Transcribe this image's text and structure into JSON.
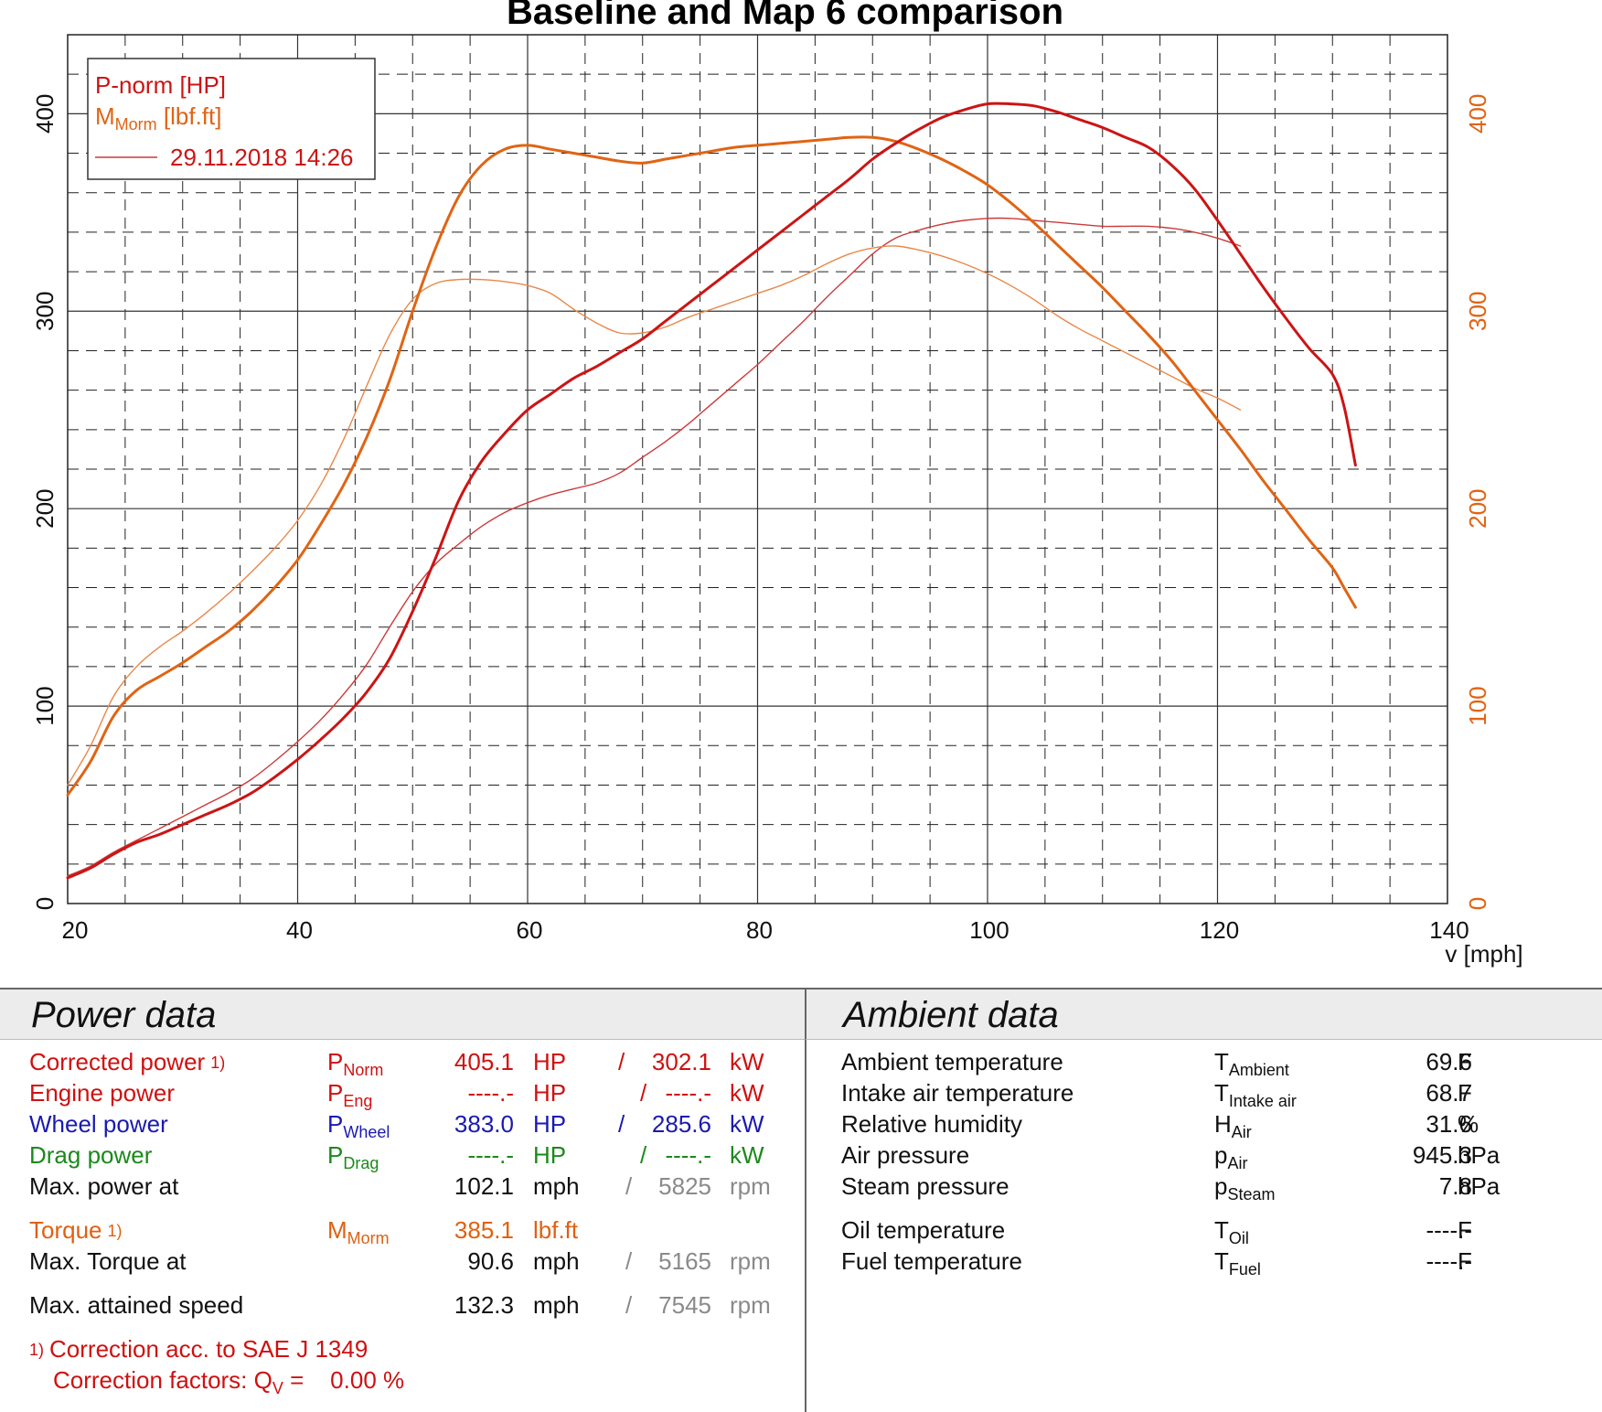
{
  "chart_data": {
    "type": "line",
    "title": "Baseline and Map 6 comparison",
    "xlabel": "v [mph]",
    "xlim": [
      20,
      140
    ],
    "ylim_left": [
      0,
      440
    ],
    "ylim_right": [
      0,
      440
    ],
    "x_ticks": [
      "20",
      "40",
      "60",
      "80",
      "100",
      "120",
      "140"
    ],
    "y_ticks_left": [
      "0",
      "100",
      "200",
      "300",
      "400"
    ],
    "y_ticks_right": [
      "0",
      "100",
      "200",
      "300",
      "400"
    ],
    "grid": true,
    "legend_position": "top-left",
    "legend": {
      "power_label": "P-norm [HP]",
      "torque_label_main": "M",
      "torque_label_sub": "Morm",
      "torque_label_unit": " [lbf.ft]",
      "baseline_label": "29.11.2018 14:26"
    },
    "colors": {
      "power": "#cc1414",
      "torque": "#e06414",
      "baseline_power": "#cc3a3a",
      "baseline_torque": "#e8884a"
    },
    "series": [
      {
        "key": "power_map6",
        "axis": "left",
        "points": [
          [
            20,
            13
          ],
          [
            22,
            18
          ],
          [
            24,
            25
          ],
          [
            26,
            31
          ],
          [
            28,
            35
          ],
          [
            30,
            40
          ],
          [
            32,
            45
          ],
          [
            34,
            50
          ],
          [
            36,
            56
          ],
          [
            38,
            64
          ],
          [
            40,
            73
          ],
          [
            42,
            83
          ],
          [
            44,
            94
          ],
          [
            46,
            107
          ],
          [
            48,
            124
          ],
          [
            50,
            148
          ],
          [
            52,
            175
          ],
          [
            54,
            204
          ],
          [
            56,
            224
          ],
          [
            58,
            238
          ],
          [
            60,
            250
          ],
          [
            62,
            258
          ],
          [
            64,
            266
          ],
          [
            66,
            272
          ],
          [
            68,
            279
          ],
          [
            70,
            286
          ],
          [
            72,
            295
          ],
          [
            74,
            304
          ],
          [
            76,
            313
          ],
          [
            78,
            322
          ],
          [
            80,
            331
          ],
          [
            82,
            340
          ],
          [
            84,
            349
          ],
          [
            86,
            358
          ],
          [
            88,
            367
          ],
          [
            90,
            377
          ],
          [
            92,
            385
          ],
          [
            94,
            392
          ],
          [
            96,
            398
          ],
          [
            98,
            402
          ],
          [
            100,
            405
          ],
          [
            102,
            405
          ],
          [
            104,
            404
          ],
          [
            106,
            401
          ],
          [
            108,
            397
          ],
          [
            110,
            393
          ],
          [
            112,
            388
          ],
          [
            114,
            383
          ],
          [
            116,
            374
          ],
          [
            118,
            362
          ],
          [
            120,
            346
          ],
          [
            122,
            329
          ],
          [
            124,
            312
          ],
          [
            126,
            296
          ],
          [
            128,
            281
          ],
          [
            130,
            268
          ],
          [
            131,
            252
          ],
          [
            132,
            222
          ]
        ]
      },
      {
        "key": "torque_map6",
        "axis": "right",
        "points": [
          [
            20,
            55
          ],
          [
            22,
            72
          ],
          [
            24,
            95
          ],
          [
            26,
            108
          ],
          [
            28,
            115
          ],
          [
            30,
            122
          ],
          [
            32,
            130
          ],
          [
            34,
            138
          ],
          [
            36,
            148
          ],
          [
            38,
            160
          ],
          [
            40,
            174
          ],
          [
            42,
            192
          ],
          [
            44,
            212
          ],
          [
            46,
            236
          ],
          [
            48,
            265
          ],
          [
            50,
            300
          ],
          [
            52,
            332
          ],
          [
            54,
            358
          ],
          [
            56,
            374
          ],
          [
            58,
            382
          ],
          [
            60,
            384
          ],
          [
            62,
            382
          ],
          [
            64,
            380
          ],
          [
            66,
            378
          ],
          [
            68,
            376
          ],
          [
            70,
            375
          ],
          [
            72,
            377
          ],
          [
            74,
            379
          ],
          [
            76,
            381
          ],
          [
            78,
            383
          ],
          [
            80,
            384
          ],
          [
            82,
            385
          ],
          [
            84,
            386
          ],
          [
            86,
            387
          ],
          [
            88,
            388
          ],
          [
            90,
            388
          ],
          [
            92,
            386
          ],
          [
            94,
            382
          ],
          [
            96,
            377
          ],
          [
            98,
            371
          ],
          [
            100,
            364
          ],
          [
            102,
            355
          ],
          [
            104,
            345
          ],
          [
            106,
            334
          ],
          [
            108,
            323
          ],
          [
            110,
            312
          ],
          [
            112,
            300
          ],
          [
            114,
            288
          ],
          [
            116,
            275
          ],
          [
            118,
            260
          ],
          [
            120,
            245
          ],
          [
            122,
            230
          ],
          [
            124,
            214
          ],
          [
            126,
            199
          ],
          [
            128,
            184
          ],
          [
            130,
            170
          ],
          [
            131,
            160
          ],
          [
            132,
            150
          ]
        ]
      },
      {
        "key": "power_baseline",
        "axis": "left",
        "points": [
          [
            20,
            14
          ],
          [
            22,
            19
          ],
          [
            24,
            26
          ],
          [
            26,
            32
          ],
          [
            28,
            38
          ],
          [
            30,
            44
          ],
          [
            32,
            50
          ],
          [
            34,
            56
          ],
          [
            36,
            63
          ],
          [
            38,
            72
          ],
          [
            40,
            82
          ],
          [
            42,
            93
          ],
          [
            44,
            106
          ],
          [
            46,
            121
          ],
          [
            48,
            140
          ],
          [
            50,
            158
          ],
          [
            52,
            172
          ],
          [
            54,
            182
          ],
          [
            56,
            191
          ],
          [
            58,
            198
          ],
          [
            60,
            203
          ],
          [
            62,
            207
          ],
          [
            64,
            210
          ],
          [
            66,
            213
          ],
          [
            68,
            218
          ],
          [
            70,
            226
          ],
          [
            72,
            234
          ],
          [
            74,
            243
          ],
          [
            76,
            253
          ],
          [
            78,
            263
          ],
          [
            80,
            273
          ],
          [
            82,
            284
          ],
          [
            84,
            295
          ],
          [
            86,
            307
          ],
          [
            88,
            318
          ],
          [
            90,
            329
          ],
          [
            92,
            337
          ],
          [
            94,
            341
          ],
          [
            96,
            344
          ],
          [
            98,
            346
          ],
          [
            100,
            347
          ],
          [
            102,
            347
          ],
          [
            104,
            346
          ],
          [
            106,
            345
          ],
          [
            108,
            344
          ],
          [
            110,
            343
          ],
          [
            112,
            343
          ],
          [
            114,
            343
          ],
          [
            116,
            342
          ],
          [
            118,
            340
          ],
          [
            120,
            337
          ],
          [
            122,
            333
          ]
        ]
      },
      {
        "key": "torque_baseline",
        "axis": "right",
        "points": [
          [
            20,
            60
          ],
          [
            22,
            80
          ],
          [
            24,
            105
          ],
          [
            26,
            120
          ],
          [
            28,
            130
          ],
          [
            30,
            138
          ],
          [
            32,
            147
          ],
          [
            34,
            157
          ],
          [
            36,
            168
          ],
          [
            38,
            180
          ],
          [
            40,
            194
          ],
          [
            42,
            212
          ],
          [
            44,
            235
          ],
          [
            46,
            262
          ],
          [
            48,
            288
          ],
          [
            50,
            306
          ],
          [
            52,
            314
          ],
          [
            54,
            316
          ],
          [
            56,
            316
          ],
          [
            58,
            315
          ],
          [
            60,
            313
          ],
          [
            62,
            309
          ],
          [
            64,
            301
          ],
          [
            66,
            294
          ],
          [
            68,
            289
          ],
          [
            70,
            289
          ],
          [
            72,
            292
          ],
          [
            74,
            297
          ],
          [
            76,
            301
          ],
          [
            78,
            305
          ],
          [
            80,
            309
          ],
          [
            82,
            313
          ],
          [
            84,
            318
          ],
          [
            86,
            324
          ],
          [
            88,
            329
          ],
          [
            90,
            332
          ],
          [
            92,
            333
          ],
          [
            94,
            331
          ],
          [
            96,
            328
          ],
          [
            98,
            324
          ],
          [
            100,
            319
          ],
          [
            102,
            313
          ],
          [
            104,
            306
          ],
          [
            106,
            298
          ],
          [
            108,
            291
          ],
          [
            110,
            285
          ],
          [
            112,
            279
          ],
          [
            114,
            273
          ],
          [
            116,
            267
          ],
          [
            118,
            261
          ],
          [
            120,
            256
          ],
          [
            122,
            250
          ]
        ]
      }
    ]
  },
  "power_data": {
    "title": "Power data",
    "rows": [
      {
        "label": "Corrected power",
        "footnote": "1)",
        "sym": "P",
        "sub": "Norm",
        "v1": "405.1",
        "u1": "HP",
        "sep": "/",
        "v2": "302.1",
        "u2": "kW"
      },
      {
        "label": "Engine power",
        "sym": "P",
        "sub": "Eng",
        "v1": "----.-",
        "u1": "HP",
        "sep": "/",
        "v2": "----.-",
        "u2": "kW"
      },
      {
        "label": "Wheel power",
        "sym": "P",
        "sub": "Wheel",
        "v1": "383.0",
        "u1": "HP",
        "sep": "/",
        "v2": "285.6",
        "u2": "kW"
      },
      {
        "label": "Drag power",
        "sym": "P",
        "sub": "Drag",
        "v1": "----.-",
        "u1": "HP",
        "sep": "/",
        "v2": "----.-",
        "u2": "kW"
      },
      {
        "label": "Max. power at",
        "v1": "102.1",
        "u1": "mph",
        "sep": "/",
        "v2": "5825",
        "u2": "rpm"
      },
      {
        "label": "Torque",
        "footnote": "1)",
        "sym": "M",
        "sub": "Morm",
        "v1": "385.1",
        "u1": "lbf.ft"
      },
      {
        "label": "Max. Torque at",
        "v1": "90.6",
        "u1": "mph",
        "sep": "/",
        "v2": "5165",
        "u2": "rpm"
      },
      {
        "label": "Max. attained speed",
        "v1": "132.3",
        "u1": "mph",
        "sep": "/",
        "v2": "7545",
        "u2": "rpm"
      }
    ],
    "footnote_mark": "1)",
    "correction_note": "Correction acc. to SAE J 1349",
    "correction_factors_label": "Correction factors: Q",
    "correction_factors_sub": "V",
    "correction_factors_value": " =    0.00 %"
  },
  "ambient_data": {
    "title": "Ambient data",
    "rows": [
      {
        "label": "Ambient temperature",
        "sym": "T",
        "sub": "Ambient",
        "value": "69.6",
        "unit": "F"
      },
      {
        "label": "Intake air temperature",
        "sym": "T",
        "sub": "Intake air",
        "value": "68.7",
        "unit": "F"
      },
      {
        "label": "Relative humidity",
        "sym": "H",
        "sub": "Air",
        "value": "31.6",
        "unit": "%"
      },
      {
        "label": "Air pressure",
        "sym": "p",
        "sub": "Air",
        "value": "945.3",
        "unit": "hPa"
      },
      {
        "label": "Steam pressure",
        "sym": "p",
        "sub": "Steam",
        "value": "7.8",
        "unit": "hPa"
      },
      {
        "label": "Oil temperature",
        "sym": "T",
        "sub": "Oil",
        "value": "----.-",
        "unit": "F"
      },
      {
        "label": "Fuel temperature",
        "sym": "T",
        "sub": "Fuel",
        "value": "----.-",
        "unit": "F"
      }
    ]
  }
}
